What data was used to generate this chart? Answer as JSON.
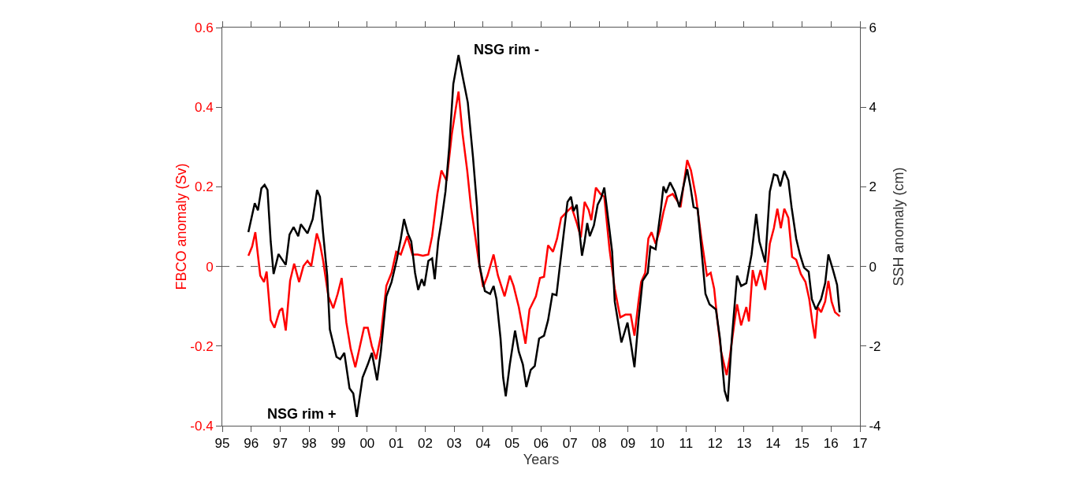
{
  "chart_data": {
    "type": "line",
    "xlabel": "Years",
    "ylabel": "FBCO anomaly (Sv)",
    "y2label": "SSH anomaly (cm)",
    "annotations": [
      "NSG rim -",
      "NSG rim +"
    ],
    "xlim": [
      1995,
      2017
    ],
    "xticks": [
      {
        "value": 1995,
        "label": "95"
      },
      {
        "value": 1996,
        "label": "96"
      },
      {
        "value": 1997,
        "label": "97"
      },
      {
        "value": 1998,
        "label": "98"
      },
      {
        "value": 1999,
        "label": "99"
      },
      {
        "value": 2000,
        "label": "00"
      },
      {
        "value": 2001,
        "label": "01"
      },
      {
        "value": 2002,
        "label": "02"
      },
      {
        "value": 2003,
        "label": "03"
      },
      {
        "value": 2004,
        "label": "04"
      },
      {
        "value": 2005,
        "label": "05"
      },
      {
        "value": 2006,
        "label": "06"
      },
      {
        "value": 2007,
        "label": "07"
      },
      {
        "value": 2008,
        "label": "08"
      },
      {
        "value": 2009,
        "label": "09"
      },
      {
        "value": 2010,
        "label": "10"
      },
      {
        "value": 2011,
        "label": "11"
      },
      {
        "value": 2012,
        "label": "12"
      },
      {
        "value": 2013,
        "label": "13"
      },
      {
        "value": 2014,
        "label": "14"
      },
      {
        "value": 2015,
        "label": "15"
      },
      {
        "value": 2016,
        "label": "16"
      },
      {
        "value": 2017,
        "label": "17"
      }
    ],
    "ylim": [
      -0.4,
      0.6
    ],
    "yticks": [
      -0.4,
      -0.2,
      0,
      0.2,
      0.4,
      0.6
    ],
    "y2lim": [
      -4,
      6
    ],
    "y2ticks": [
      -4,
      -2,
      0,
      2,
      4,
      6
    ],
    "ref_lines": [
      {
        "axis": "y",
        "value": 0,
        "color": "#555555",
        "line_style": "dashed"
      }
    ],
    "marker": "none",
    "line_style": "solid",
    "series": [
      {
        "color": "#ff0000",
        "x": [
          1995.9,
          1996.03,
          1996.14,
          1996.31,
          1996.44,
          1996.53,
          1996.67,
          1996.8,
          1996.98,
          1997.07,
          1997.19,
          1997.34,
          1997.48,
          1997.65,
          1997.8,
          1997.94,
          1998.07,
          1998.26,
          1998.37,
          1998.48,
          1998.66,
          1998.83,
          1998.98,
          1999.12,
          1999.28,
          1999.43,
          1999.59,
          1999.75,
          1999.89,
          2000.02,
          2000.16,
          2000.31,
          2000.47,
          2000.66,
          2000.84,
          2001.0,
          2001.16,
          2001.38,
          2001.56,
          2001.74,
          2001.92,
          2002.11,
          2002.24,
          2002.42,
          2002.56,
          2002.74,
          2002.92,
          2003.06,
          2003.15,
          2003.29,
          2003.45,
          2003.58,
          2003.7,
          2003.84,
          2004.0,
          2004.15,
          2004.36,
          2004.51,
          2004.74,
          2004.92,
          2005.05,
          2005.23,
          2005.46,
          2005.6,
          2005.82,
          2005.96,
          2006.1,
          2006.24,
          2006.41,
          2006.55,
          2006.69,
          2006.87,
          2007.05,
          2007.23,
          2007.37,
          2007.5,
          2007.64,
          2007.73,
          2007.89,
          2008.05,
          2008.18,
          2008.36,
          2008.54,
          2008.73,
          2008.91,
          2009.09,
          2009.22,
          2009.36,
          2009.45,
          2009.59,
          2009.7,
          2009.81,
          2009.95,
          2010.09,
          2010.22,
          2010.36,
          2010.54,
          2010.72,
          2010.81,
          2010.95,
          2011.04,
          2011.17,
          2011.34,
          2011.53,
          2011.72,
          2011.85,
          2011.97,
          2012.08,
          2012.21,
          2012.4,
          2012.51,
          2012.67,
          2012.76,
          2012.9,
          2013.08,
          2013.17,
          2013.3,
          2013.42,
          2013.57,
          2013.73,
          2013.89,
          2014.03,
          2014.15,
          2014.27,
          2014.39,
          2014.53,
          2014.66,
          2014.8,
          2014.96,
          2015.12,
          2015.25,
          2015.36,
          2015.45,
          2015.54,
          2015.66,
          2015.8,
          2015.91,
          2016.02,
          2016.14,
          2016.3
        ],
        "values": [
          0.027,
          0.05,
          0.086,
          -0.023,
          -0.039,
          -0.013,
          -0.135,
          -0.154,
          -0.111,
          -0.105,
          -0.161,
          -0.036,
          0.007,
          -0.039,
          0.001,
          0.014,
          0.001,
          0.083,
          0.057,
          0.014,
          -0.075,
          -0.105,
          -0.069,
          -0.029,
          -0.141,
          -0.207,
          -0.253,
          -0.2,
          -0.154,
          -0.154,
          -0.2,
          -0.233,
          -0.174,
          -0.049,
          -0.016,
          0.037,
          0.03,
          0.076,
          0.03,
          0.03,
          0.027,
          0.03,
          0.076,
          0.182,
          0.241,
          0.215,
          0.333,
          0.399,
          0.439,
          0.333,
          0.241,
          0.149,
          0.09,
          0.017,
          -0.052,
          -0.023,
          0.03,
          -0.023,
          -0.075,
          -0.023,
          -0.049,
          -0.102,
          -0.194,
          -0.108,
          -0.075,
          -0.029,
          -0.026,
          0.053,
          0.037,
          0.07,
          0.122,
          0.136,
          0.149,
          0.109,
          0.073,
          0.162,
          0.142,
          0.116,
          0.198,
          0.182,
          0.175,
          0.043,
          -0.056,
          -0.128,
          -0.121,
          -0.121,
          -0.174,
          -0.088,
          -0.039,
          -0.016,
          0.07,
          0.086,
          0.057,
          0.09,
          0.136,
          0.175,
          0.182,
          0.162,
          0.149,
          0.221,
          0.267,
          0.241,
          0.175,
          0.07,
          -0.023,
          -0.016,
          -0.056,
          -0.135,
          -0.214,
          -0.273,
          -0.227,
          -0.141,
          -0.095,
          -0.148,
          -0.102,
          -0.138,
          -0.009,
          -0.049,
          -0.009,
          -0.059,
          0.057,
          0.096,
          0.145,
          0.096,
          0.145,
          0.122,
          0.024,
          0.017,
          -0.019,
          -0.039,
          -0.082,
          -0.141,
          -0.181,
          -0.102,
          -0.115,
          -0.088,
          -0.036,
          -0.088,
          -0.115,
          -0.125
        ]
      },
      {
        "color": "#000000",
        "axis": "y2",
        "x": [
          1995.9,
          1996.12,
          1996.23,
          1996.35,
          1996.46,
          1996.56,
          1996.67,
          1996.77,
          1996.94,
          1997.19,
          1997.32,
          1997.46,
          1997.62,
          1997.71,
          1997.94,
          1998.12,
          1998.27,
          1998.37,
          1998.48,
          1998.62,
          1998.71,
          1998.94,
          1999.07,
          1999.21,
          1999.39,
          1999.52,
          1999.64,
          1999.84,
          2000.02,
          2000.16,
          2000.34,
          2000.47,
          2000.66,
          2000.84,
          2001.02,
          2001.16,
          2001.27,
          2001.4,
          2001.52,
          2001.65,
          2001.76,
          2001.88,
          2001.97,
          2002.11,
          2002.24,
          2002.33,
          2002.45,
          2002.55,
          2002.7,
          2002.83,
          2002.97,
          2003.15,
          2003.29,
          2003.47,
          2003.65,
          2003.79,
          2003.87,
          2004.06,
          2004.24,
          2004.36,
          2004.46,
          2004.6,
          2004.69,
          2004.78,
          2004.92,
          2005.1,
          2005.23,
          2005.37,
          2005.49,
          2005.64,
          2005.78,
          2005.93,
          2006.1,
          2006.24,
          2006.39,
          2006.53,
          2006.64,
          2006.78,
          2006.91,
          2007.03,
          2007.12,
          2007.23,
          2007.32,
          2007.41,
          2007.5,
          2007.59,
          2007.68,
          2007.82,
          2007.95,
          2008.07,
          2008.18,
          2008.34,
          2008.45,
          2008.54,
          2008.77,
          2008.98,
          2009.11,
          2009.22,
          2009.36,
          2009.5,
          2009.68,
          2009.77,
          2009.95,
          2010.13,
          2010.22,
          2010.31,
          2010.45,
          2010.61,
          2010.77,
          2010.9,
          2011.04,
          2011.15,
          2011.26,
          2011.4,
          2011.53,
          2011.67,
          2011.81,
          2012.03,
          2012.17,
          2012.33,
          2012.44,
          2012.58,
          2012.76,
          2012.9,
          2013.08,
          2013.26,
          2013.42,
          2013.53,
          2013.73,
          2013.89,
          2014.03,
          2014.15,
          2014.25,
          2014.39,
          2014.53,
          2014.64,
          2014.8,
          2014.93,
          2015.07,
          2015.23,
          2015.34,
          2015.48,
          2015.66,
          2015.8,
          2015.91,
          2016.07,
          2016.21,
          2016.3
        ],
        "values": [
          0.86,
          1.59,
          1.41,
          1.96,
          2.05,
          1.92,
          0.63,
          -0.19,
          0.31,
          0.04,
          0.8,
          0.99,
          0.76,
          1.06,
          0.83,
          1.19,
          1.92,
          1.75,
          0.83,
          -0.23,
          -1.58,
          -2.27,
          -2.33,
          -2.17,
          -3.06,
          -3.19,
          -3.78,
          -2.79,
          -2.46,
          -2.17,
          -2.86,
          -2.14,
          -0.75,
          -0.39,
          0.17,
          0.7,
          1.19,
          0.83,
          0.63,
          -0.16,
          -0.59,
          -0.32,
          -0.49,
          0.14,
          0.2,
          -0.32,
          0.63,
          1.09,
          1.88,
          3.0,
          4.58,
          5.31,
          4.78,
          4.12,
          2.74,
          1.49,
          0.04,
          -0.62,
          -0.69,
          -0.49,
          -0.82,
          -1.81,
          -2.79,
          -3.26,
          -2.46,
          -1.61,
          -2.14,
          -2.46,
          -3.03,
          -2.6,
          -2.5,
          -1.81,
          -1.74,
          -1.35,
          -0.69,
          -0.72,
          -0.03,
          0.83,
          1.62,
          1.75,
          1.39,
          1.55,
          0.9,
          0.27,
          0.63,
          1.09,
          0.76,
          1.03,
          1.55,
          1.72,
          1.98,
          1.03,
          0.37,
          -0.88,
          -1.91,
          -1.41,
          -2.0,
          -2.53,
          -1.35,
          -0.36,
          -0.16,
          0.5,
          0.43,
          1.42,
          2.01,
          1.85,
          2.11,
          1.88,
          1.49,
          1.98,
          2.44,
          2.01,
          1.49,
          1.45,
          0.43,
          -0.69,
          -0.95,
          -1.08,
          -1.81,
          -3.12,
          -3.39,
          -1.81,
          -0.23,
          -0.49,
          -0.42,
          0.3,
          1.32,
          0.63,
          0.1,
          1.88,
          2.31,
          2.28,
          2.01,
          2.4,
          2.16,
          1.49,
          0.7,
          0.3,
          -0.03,
          -0.13,
          -0.82,
          -1.08,
          -0.82,
          -0.42,
          0.3,
          -0.09,
          -0.46,
          -1.15
        ]
      }
    ]
  }
}
